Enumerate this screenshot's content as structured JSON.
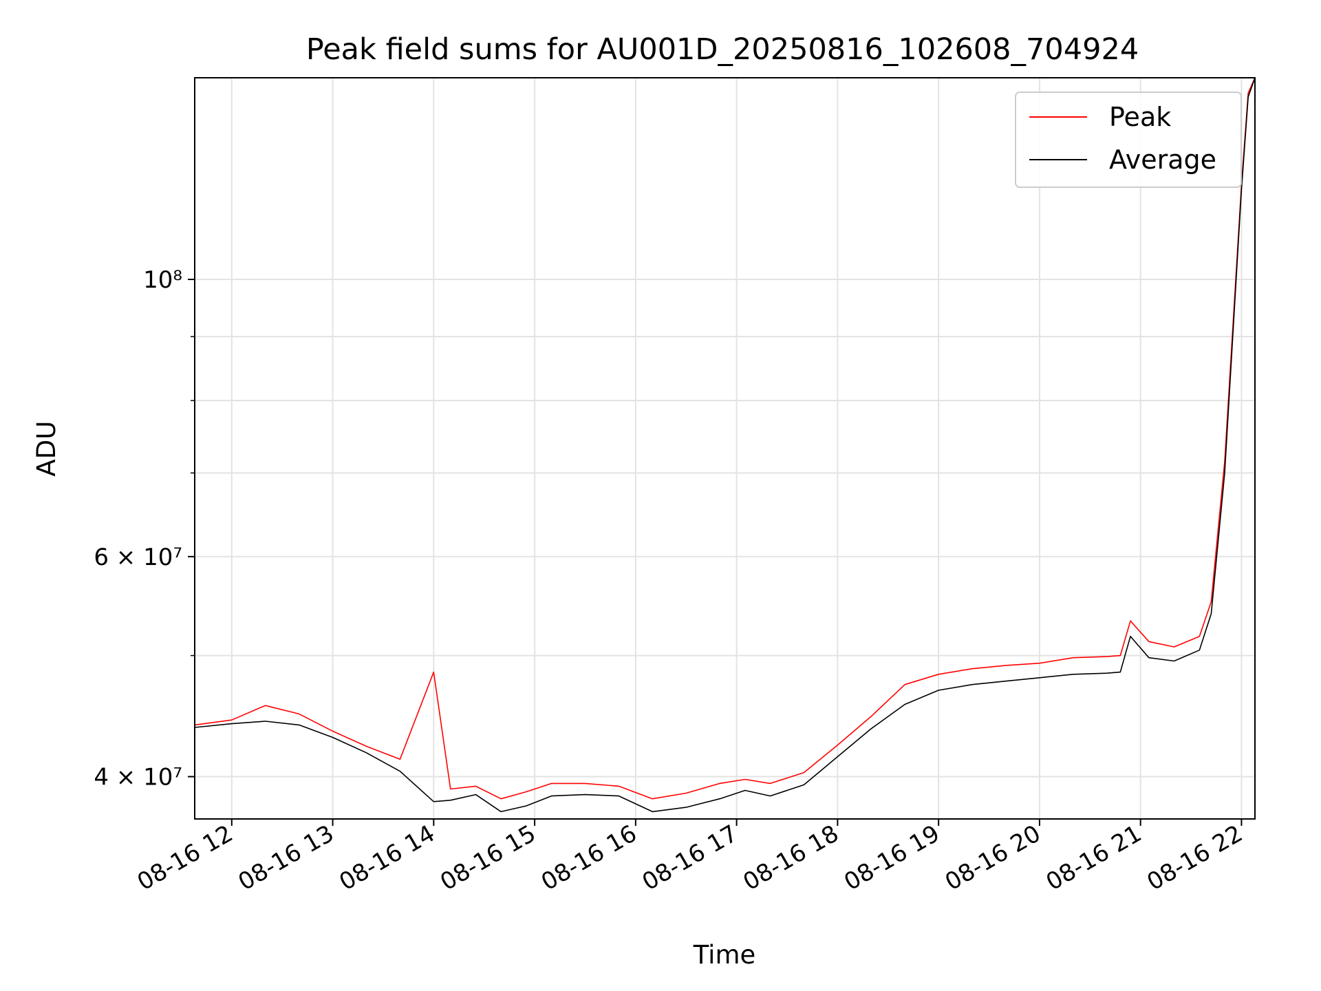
{
  "chart_data": {
    "type": "line",
    "title": "Peak field sums for AU001D_20250816_102608_704924",
    "xlabel": "Time",
    "ylabel": "ADU",
    "yscale": "log",
    "ylim": [
      37000000,
      145000000
    ],
    "xlim": [
      "2025-08-16T11:38",
      "2025-08-16T22:08"
    ],
    "grid": true,
    "legend_position": "upper right",
    "x_tick_labels": [
      "08-16 12",
      "08-16 13",
      "08-16 14",
      "08-16 15",
      "08-16 16",
      "08-16 17",
      "08-16 18",
      "08-16 19",
      "08-16 20",
      "08-16 21",
      "08-16 22"
    ],
    "y_tick_labels": [
      {
        "value": 40000000,
        "label": "4 × 10⁷"
      },
      {
        "value": 60000000,
        "label": "6 × 10⁷"
      },
      {
        "value": 100000000,
        "label": "10⁸"
      }
    ],
    "series": [
      {
        "name": "Peak",
        "color": "#ff0000"
      },
      {
        "name": "Average",
        "color": "#000000"
      }
    ],
    "x": [
      "2025-08-16T11:38",
      "2025-08-16T12:00",
      "2025-08-16T12:20",
      "2025-08-16T12:40",
      "2025-08-16T13:00",
      "2025-08-16T13:20",
      "2025-08-16T13:40",
      "2025-08-16T14:00",
      "2025-08-16T14:10",
      "2025-08-16T14:25",
      "2025-08-16T14:40",
      "2025-08-16T14:55",
      "2025-08-16T15:10",
      "2025-08-16T15:30",
      "2025-08-16T15:50",
      "2025-08-16T16:10",
      "2025-08-16T16:30",
      "2025-08-16T16:50",
      "2025-08-16T17:05",
      "2025-08-16T17:20",
      "2025-08-16T17:40",
      "2025-08-16T18:00",
      "2025-08-16T18:20",
      "2025-08-16T18:40",
      "2025-08-16T19:00",
      "2025-08-16T19:20",
      "2025-08-16T19:40",
      "2025-08-16T20:00",
      "2025-08-16T20:20",
      "2025-08-16T20:40",
      "2025-08-16T20:48",
      "2025-08-16T20:54",
      "2025-08-16T21:05",
      "2025-08-16T21:20",
      "2025-08-16T21:35",
      "2025-08-16T21:42",
      "2025-08-16T21:50",
      "2025-08-16T22:00",
      "2025-08-16T22:04",
      "2025-08-16T22:08"
    ],
    "average": [
      43800000,
      44100000,
      44300000,
      44000000,
      43000000,
      41800000,
      40400000,
      38200000,
      38300000,
      38700000,
      37500000,
      37900000,
      38600000,
      38700000,
      38600000,
      37500000,
      37800000,
      38400000,
      39000000,
      38600000,
      39400000,
      41500000,
      43700000,
      45700000,
      46900000,
      47400000,
      47700000,
      48000000,
      48300000,
      48400000,
      48500000,
      51800000,
      49800000,
      49500000,
      50500000,
      54000000,
      70000000,
      118000000,
      140000000,
      145000000
    ],
    "peak": [
      44000000,
      44400000,
      45600000,
      44900000,
      43500000,
      42300000,
      41300000,
      48500000,
      39100000,
      39300000,
      38400000,
      38900000,
      39500000,
      39500000,
      39300000,
      38400000,
      38800000,
      39500000,
      39800000,
      39500000,
      40300000,
      42400000,
      44700000,
      47400000,
      48300000,
      48800000,
      49100000,
      49300000,
      49800000,
      49900000,
      50000000,
      53300000,
      51300000,
      50800000,
      51800000,
      55200000,
      71500000,
      119000000,
      141000000,
      145000000
    ]
  }
}
